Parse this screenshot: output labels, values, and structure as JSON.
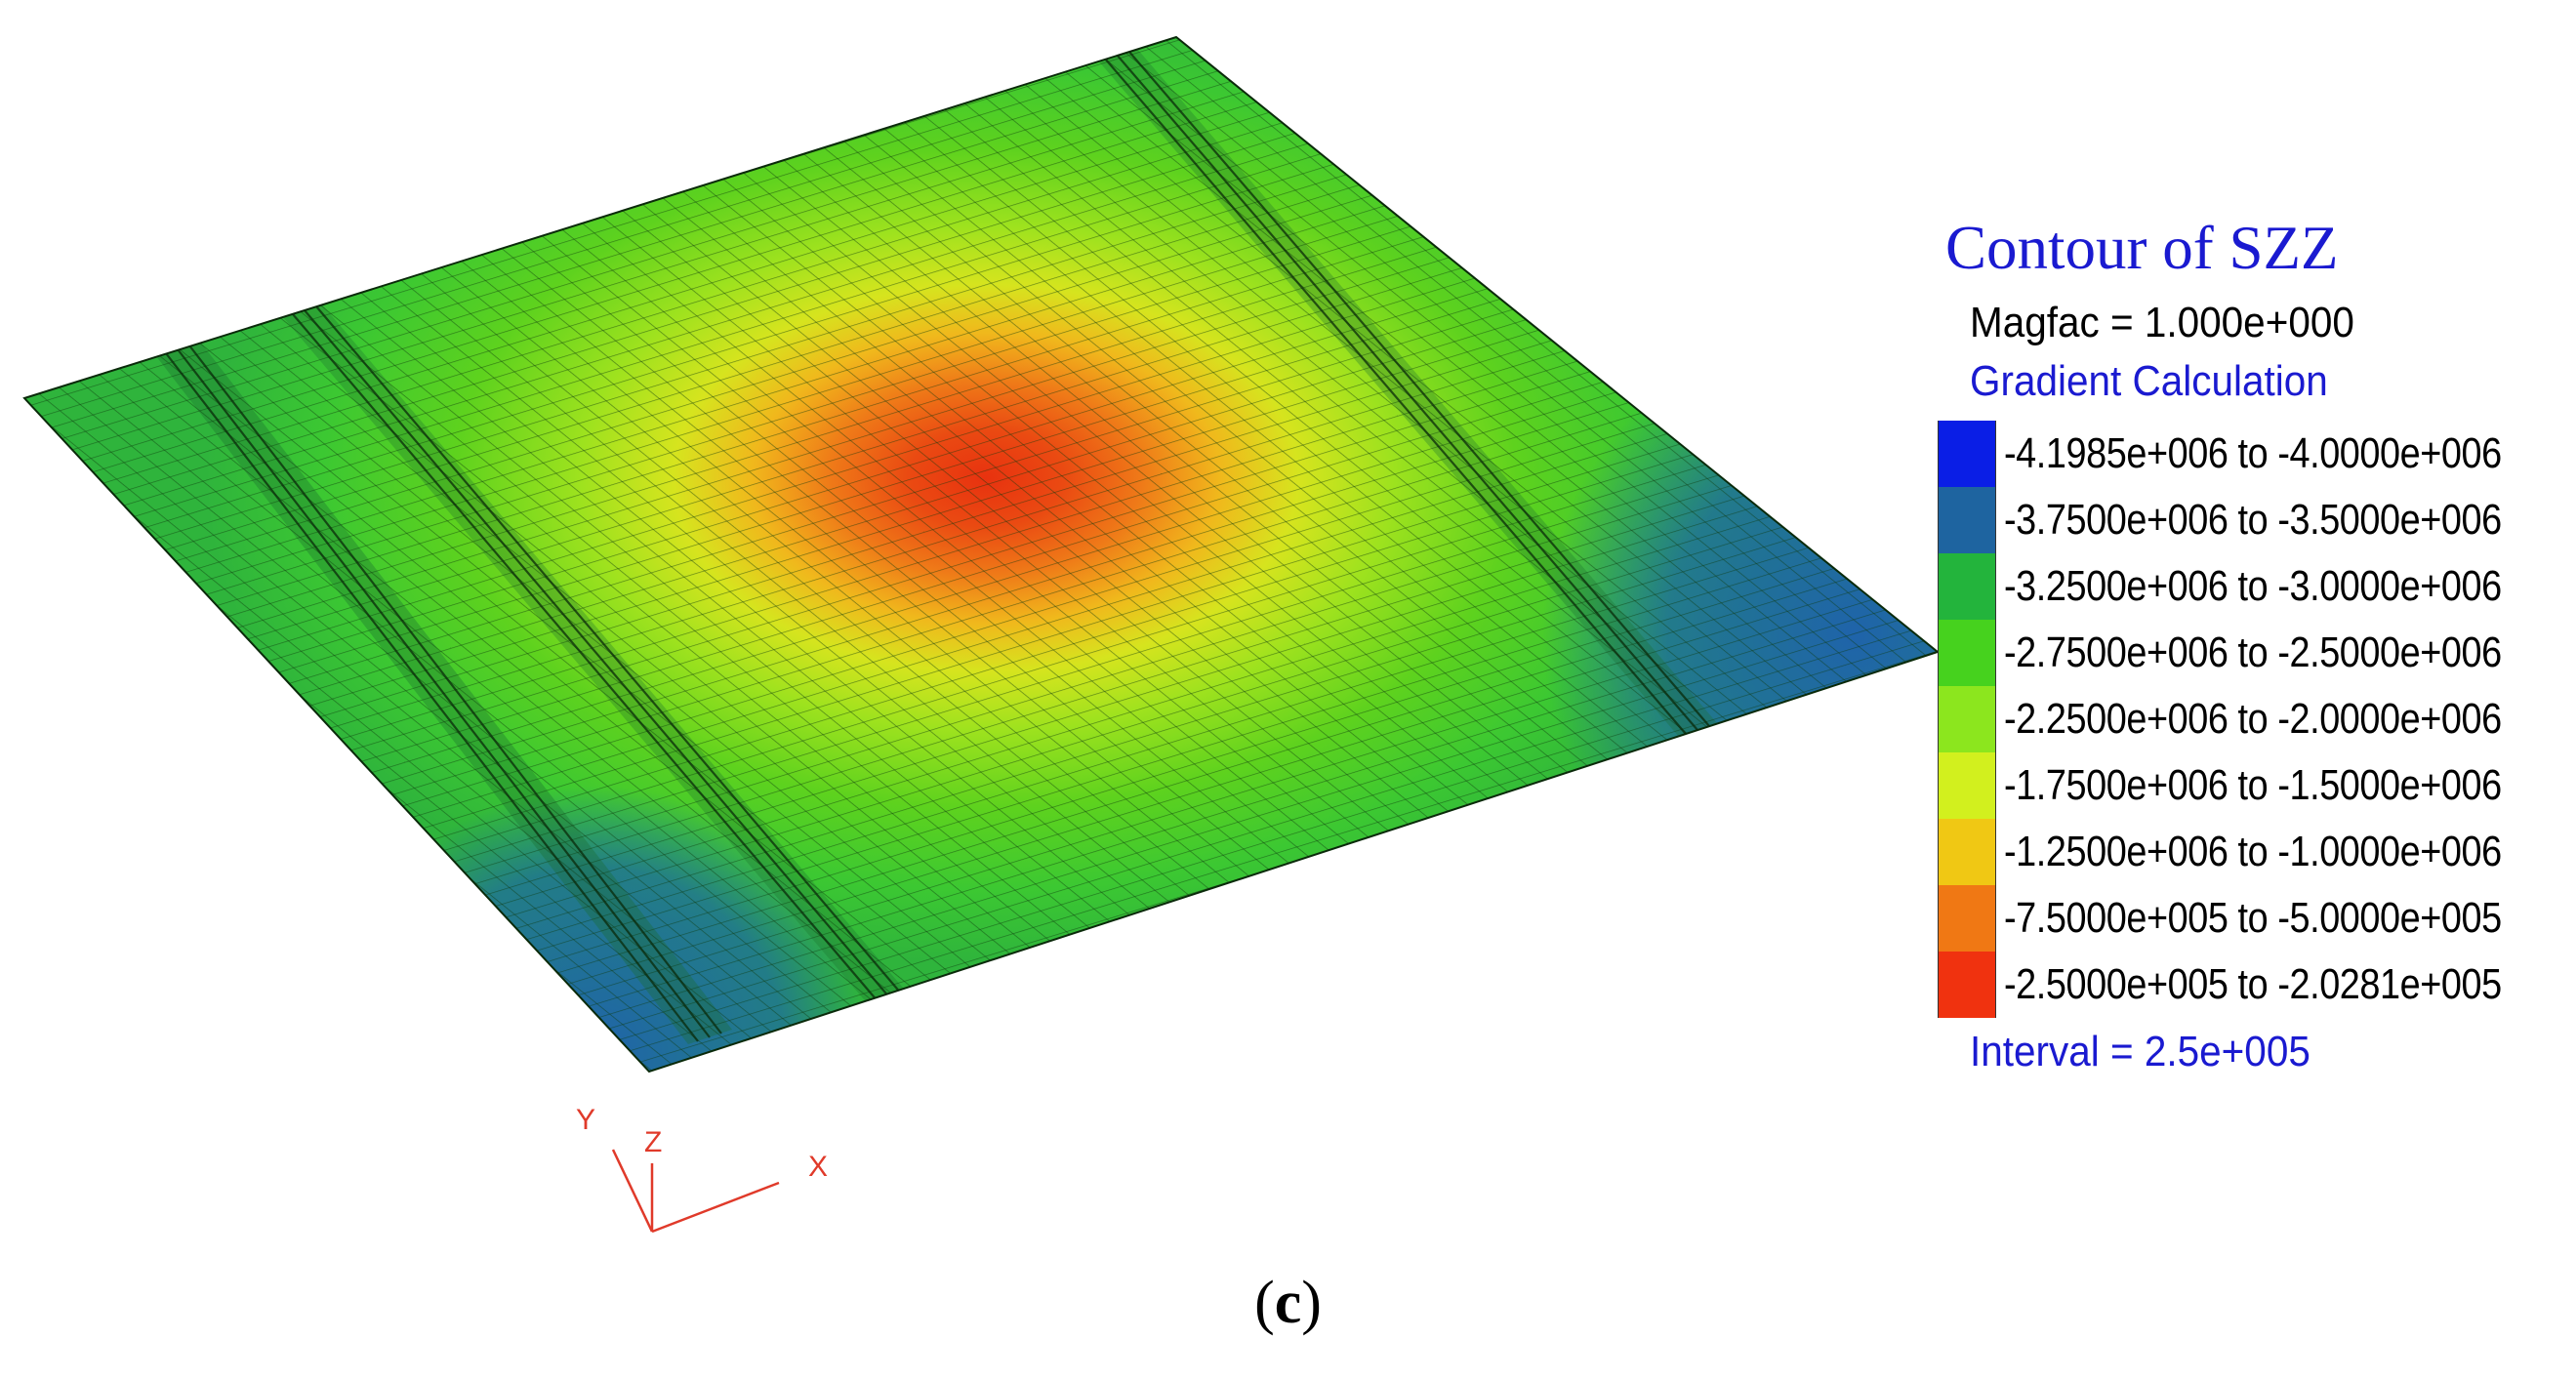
{
  "legend": {
    "title": "Contour of SZZ",
    "magfac": "Magfac =  1.000e+000",
    "method": "Gradient Calculation",
    "interval": "Interval =  2.5e+005",
    "ranges": [
      {
        "label": "-4.1985e+006 to -4.0000e+006",
        "color": "#0a1ee6"
      },
      {
        "label": "-3.7500e+006 to -3.5000e+006",
        "color": "#1e64a0"
      },
      {
        "label": "-3.2500e+006 to -3.0000e+006",
        "color": "#23b43c"
      },
      {
        "label": "-2.7500e+006 to -2.5000e+006",
        "color": "#46d21e"
      },
      {
        "label": "-2.2500e+006 to -2.0000e+006",
        "color": "#8ce61e"
      },
      {
        "label": "-1.7500e+006 to -1.5000e+006",
        "color": "#d2f01e"
      },
      {
        "label": "-1.2500e+006 to -1.0000e+006",
        "color": "#f0c814"
      },
      {
        "label": "-7.5000e+005 to -5.0000e+005",
        "color": "#f07814"
      },
      {
        "label": "-2.5000e+005 to -2.0281e+005",
        "color": "#f0320f"
      }
    ]
  },
  "axes": {
    "x": "X",
    "y": "Y",
    "z": "Z",
    "color": "#e03a2a"
  },
  "caption": {
    "open": "(",
    "letter": "c",
    "close": ")"
  }
}
